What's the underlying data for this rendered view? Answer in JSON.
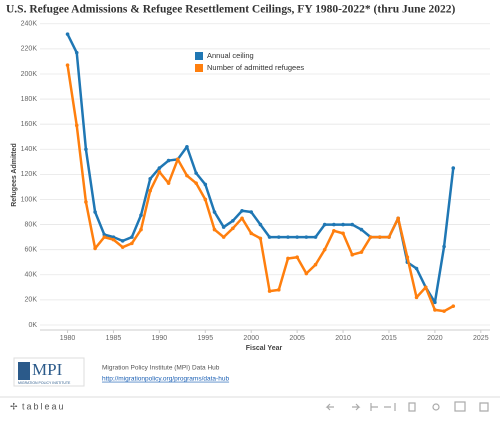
{
  "chart_data": {
    "type": "line",
    "title": "U.S. Refugee Admissions & Refugee Resettlement Ceilings, FY 1980-2022* (thru June 2022)",
    "x_label": "Fiscal Year",
    "y_label": "Refugees Admitted",
    "x": [
      1980,
      1981,
      1982,
      1983,
      1984,
      1985,
      1986,
      1987,
      1988,
      1989,
      1990,
      1991,
      1992,
      1993,
      1994,
      1995,
      1996,
      1997,
      1998,
      1999,
      2000,
      2001,
      2002,
      2003,
      2004,
      2005,
      2006,
      2007,
      2008,
      2009,
      2010,
      2011,
      2012,
      2013,
      2014,
      2015,
      2016,
      2017,
      2018,
      2019,
      2020,
      2021,
      2022
    ],
    "series": [
      {
        "name": "Annual ceiling",
        "color": "#1f77b4",
        "values": [
          231700,
          217000,
          140000,
          90000,
          72000,
          70000,
          67000,
          70000,
          87500,
          116500,
          125000,
          131000,
          132000,
          142000,
          121000,
          112000,
          90000,
          78000,
          83000,
          91000,
          90000,
          80000,
          70000,
          70000,
          70000,
          70000,
          70000,
          70000,
          80000,
          80000,
          80000,
          80000,
          76000,
          70000,
          70000,
          70000,
          85000,
          50000,
          45000,
          30000,
          18000,
          62500,
          125000
        ]
      },
      {
        "name": "Number of admitted refugees",
        "color": "#ff7f0e",
        "values": [
          207000,
          159000,
          98000,
          61000,
          70000,
          68000,
          62000,
          65000,
          76000,
          107000,
          122000,
          113000,
          132000,
          119000,
          113000,
          100000,
          76000,
          70000,
          77000,
          85000,
          73000,
          69000,
          27000,
          28000,
          53000,
          54000,
          41000,
          48000,
          60000,
          75000,
          73000,
          56000,
          58000,
          70000,
          70000,
          70000,
          85000,
          54000,
          22000,
          30000,
          12000,
          11000,
          15000
        ]
      }
    ],
    "xlim": [
      1977,
      2026
    ],
    "xticks": [
      1980,
      1985,
      1990,
      1995,
      2000,
      2005,
      2010,
      2015,
      2020,
      2025
    ],
    "ylim": [
      -4000,
      243000
    ],
    "yticks": [
      {
        "value": 0,
        "label": "0K"
      },
      {
        "value": 20000,
        "label": "20K"
      },
      {
        "value": 40000,
        "label": "40K"
      },
      {
        "value": 60000,
        "label": "60K"
      },
      {
        "value": 80000,
        "label": "80K"
      },
      {
        "value": 100000,
        "label": "100K"
      },
      {
        "value": 120000,
        "label": "120K"
      },
      {
        "value": 140000,
        "label": "140K"
      },
      {
        "value": 160000,
        "label": "160K"
      },
      {
        "value": 180000,
        "label": "180K"
      },
      {
        "value": 200000,
        "label": "200K"
      },
      {
        "value": 220000,
        "label": "220K"
      },
      {
        "value": 240000,
        "label": "240K"
      }
    ],
    "grid": true,
    "legend": "top-center"
  },
  "footer": {
    "logo": "MPI",
    "logo_sub": "MIGRATION POLICY INSTITUTE",
    "source": "Migration Policy Institute (MPI) Data Hub",
    "link": "http://migrationpolicy.org/programs/data-hub"
  },
  "toolbar": {
    "brand": "tableau"
  }
}
